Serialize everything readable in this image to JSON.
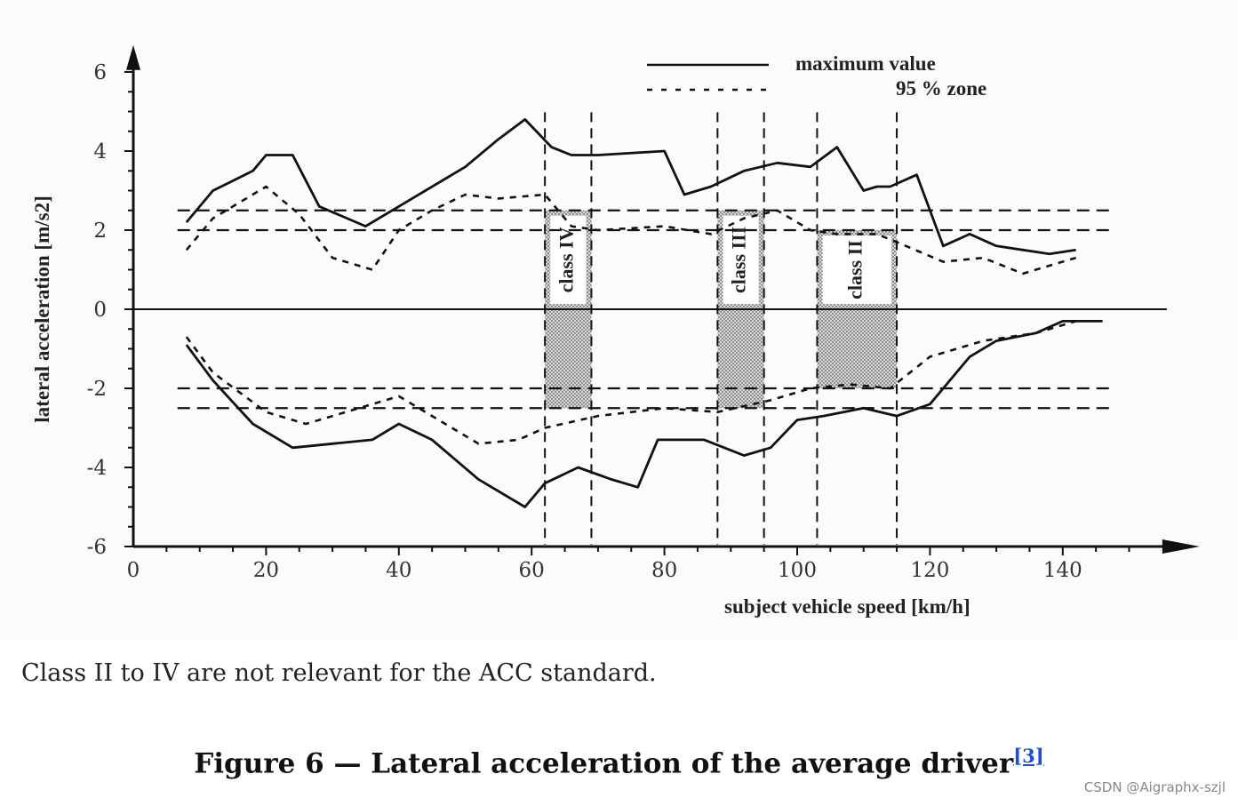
{
  "chart_data": {
    "type": "line",
    "xlabel": "subject vehicle speed [km/h]",
    "ylabel": "lateral acceleration [m/s2]",
    "xlim": [
      0,
      155
    ],
    "ylim": [
      -6,
      6.5
    ],
    "x_ticks": [
      0,
      20,
      40,
      60,
      80,
      100,
      120,
      140
    ],
    "y_ticks": [
      6,
      4,
      2,
      0,
      -2,
      -4,
      -6
    ],
    "legend": [
      {
        "label": "maximum value",
        "style": "solid"
      },
      {
        "label": "95 % zone",
        "style": "dotted"
      }
    ],
    "series": [
      {
        "name": "maximum value (positive)",
        "style": "solid",
        "x": [
          8,
          12,
          18,
          20,
          24,
          28,
          35,
          40,
          50,
          55,
          59,
          63,
          66,
          70,
          80,
          83,
          87,
          92,
          97,
          102,
          106,
          110,
          112,
          114,
          118,
          122,
          126,
          130,
          138,
          142
        ],
        "y": [
          2.2,
          3.0,
          3.5,
          3.9,
          3.9,
          2.6,
          2.1,
          2.6,
          3.6,
          4.3,
          4.8,
          4.1,
          3.9,
          3.9,
          4.0,
          2.9,
          3.1,
          3.5,
          3.7,
          3.6,
          4.1,
          3.0,
          3.1,
          3.1,
          3.4,
          1.6,
          1.9,
          1.6,
          1.4,
          1.5
        ]
      },
      {
        "name": "95 % zone (positive)",
        "style": "dotted",
        "x": [
          8,
          12,
          20,
          25,
          30,
          36,
          40,
          45,
          50,
          55,
          62,
          66,
          70,
          80,
          87,
          92,
          97,
          102,
          106,
          112,
          115,
          122,
          128,
          134,
          142
        ],
        "y": [
          1.5,
          2.3,
          3.1,
          2.4,
          1.3,
          1.0,
          2.0,
          2.5,
          2.9,
          2.8,
          2.9,
          2.1,
          2.0,
          2.1,
          1.9,
          2.3,
          2.5,
          2.0,
          1.9,
          1.9,
          1.7,
          1.2,
          1.3,
          0.9,
          1.3
        ]
      },
      {
        "name": "maximum value (negative)",
        "style": "solid",
        "x": [
          8,
          12,
          18,
          24,
          30,
          36,
          40,
          45,
          52,
          59,
          62,
          67,
          72,
          76,
          79,
          86,
          92,
          96,
          100,
          104,
          110,
          115,
          120,
          126,
          130,
          136,
          140,
          146
        ],
        "y": [
          -0.9,
          -1.8,
          -2.9,
          -3.5,
          -3.4,
          -3.3,
          -2.9,
          -3.3,
          -4.3,
          -5.0,
          -4.4,
          -4.0,
          -4.3,
          -4.5,
          -3.3,
          -3.3,
          -3.7,
          -3.5,
          -2.8,
          -2.7,
          -2.5,
          -2.7,
          -2.4,
          -1.2,
          -0.8,
          -0.6,
          -0.3,
          -0.3
        ]
      },
      {
        "name": "95 % zone (negative)",
        "style": "dotted",
        "x": [
          8,
          12,
          20,
          26,
          32,
          40,
          46,
          52,
          58,
          62,
          70,
          80,
          88,
          96,
          102,
          108,
          114,
          120,
          128,
          136,
          142
        ],
        "y": [
          -0.7,
          -1.6,
          -2.6,
          -2.9,
          -2.6,
          -2.2,
          -2.8,
          -3.4,
          -3.3,
          -3.0,
          -2.7,
          -2.5,
          -2.6,
          -2.3,
          -2.0,
          -1.9,
          -2.0,
          -1.2,
          -0.8,
          -0.6,
          -0.3
        ]
      }
    ],
    "reference_lines": [
      2.5,
      2.0,
      -2.0,
      -2.5
    ],
    "class_bands": [
      {
        "label": "class IV",
        "x_start": 62,
        "x_end": 69,
        "y_top": 2.5,
        "y_bottom": -2.5
      },
      {
        "label": "class III",
        "x_start": 88,
        "x_end": 95,
        "y_top": 2.5,
        "y_bottom": -2.5
      },
      {
        "label": "class II",
        "x_start": 103,
        "x_end": 115,
        "y_top": 2.0,
        "y_bottom": -2.0
      }
    ]
  },
  "note": "Class II to IV are not relevant for the ACC standard.",
  "caption": {
    "text": "Figure 6 — Lateral acceleration of the average driver",
    "ref": "[3]"
  },
  "watermark": "CSDN @Aigraphx-szjl"
}
